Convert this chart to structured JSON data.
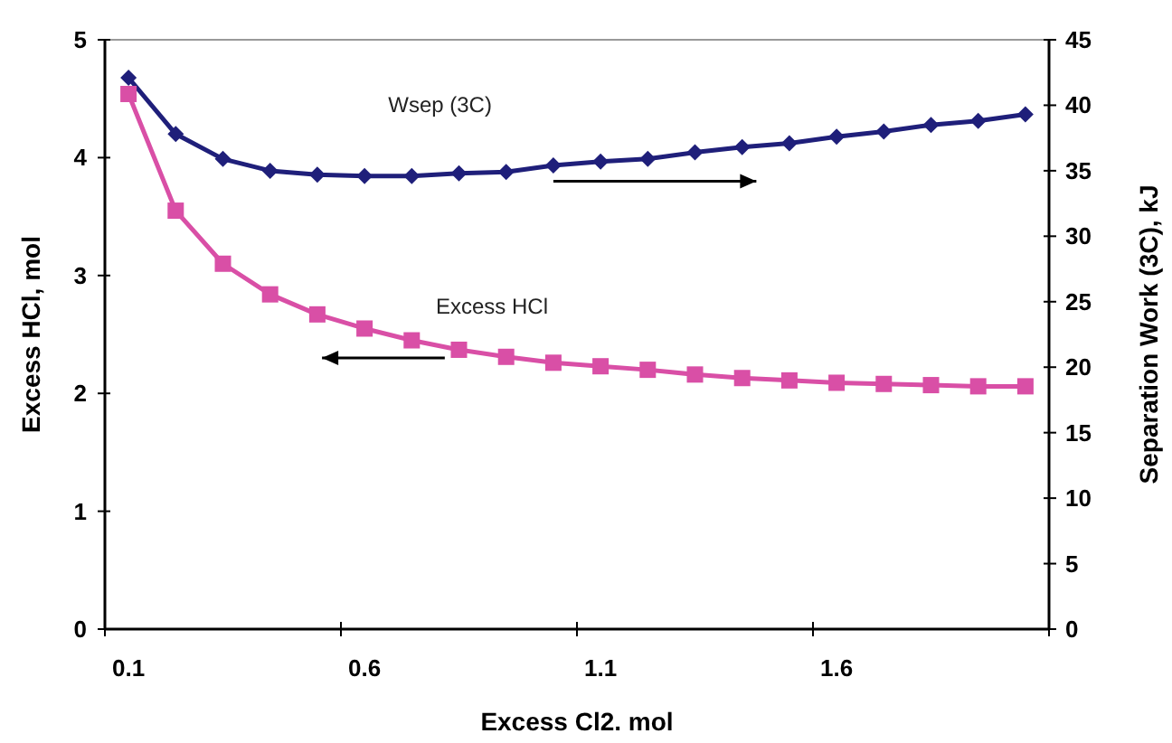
{
  "chart_data": {
    "type": "line",
    "xlabel": "Excess Cl2. mol",
    "ylabel": "Excess HCl, mol",
    "y2label": "Separation Work (3C), kJ",
    "categories": [
      "0.1",
      null,
      null,
      null,
      null,
      "0.6",
      null,
      null,
      null,
      null,
      "1.1",
      null,
      null,
      null,
      null,
      "1.6",
      null,
      null,
      null,
      null
    ],
    "ylim": [
      0,
      5
    ],
    "yticks": [
      0,
      1,
      2,
      3,
      4,
      5
    ],
    "y2lim": [
      0,
      45
    ],
    "y2ticks": [
      0,
      5,
      10,
      15,
      20,
      25,
      30,
      35,
      40,
      45
    ],
    "series": [
      {
        "name": "Wsep (3C)",
        "color": "#1f1f7a",
        "axis": "y2",
        "marker": "diamond",
        "values": [
          42.1,
          37.8,
          35.9,
          35.0,
          34.7,
          34.6,
          34.6,
          34.8,
          34.9,
          35.4,
          35.7,
          35.9,
          36.4,
          36.8,
          37.1,
          37.6,
          38.0,
          38.5,
          38.8,
          39.3
        ]
      },
      {
        "name": "Excess HCl",
        "color": "#d94fa6",
        "marker": "square",
        "values": [
          4.54,
          3.55,
          3.1,
          2.84,
          2.67,
          2.55,
          2.45,
          2.37,
          2.31,
          2.26,
          2.23,
          2.2,
          2.16,
          2.13,
          2.11,
          2.09,
          2.08,
          2.07,
          2.06,
          2.06
        ]
      }
    ],
    "grid": false
  }
}
